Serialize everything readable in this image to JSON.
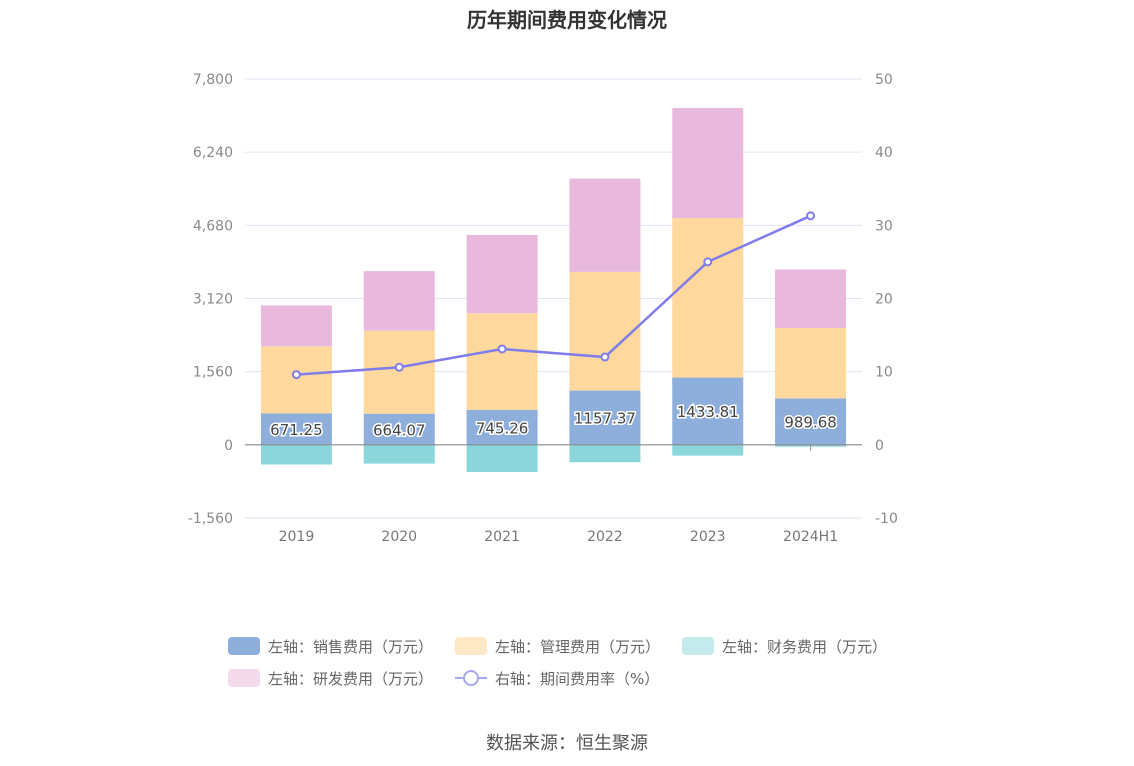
{
  "chart_data": {
    "type": "bar",
    "title": "历年期间费用变化情况",
    "categories": [
      "2019",
      "2020",
      "2021",
      "2022",
      "2023",
      "2024H1"
    ],
    "y_left": {
      "ticks": [
        "7,800",
        "6,240",
        "4,680",
        "3,120",
        "1,560",
        "0",
        "-1,560"
      ],
      "ylim": [
        -1560,
        7800
      ]
    },
    "y_right": {
      "ticks": [
        "50",
        "40",
        "30",
        "20",
        "10",
        "0",
        "-10"
      ],
      "ylim": [
        -10,
        50
      ]
    },
    "series": [
      {
        "name": "左轴：销售费用（万元）",
        "axis": "left",
        "type": "bar",
        "color": "#8eaedb",
        "values": [
          671.25,
          664.07,
          745.26,
          1157.37,
          1433.81,
          989.68
        ],
        "labels": [
          "671.25",
          "664.07",
          "745.26",
          "1157.37",
          "1433.81",
          "989.68"
        ]
      },
      {
        "name": "左轴：管理费用（万元）",
        "axis": "left",
        "type": "bar",
        "color": "#fed89c",
        "values": [
          1430,
          1770,
          2060,
          2530,
          3400,
          1500
        ]
      },
      {
        "name": "左轴：财务费用（万元）",
        "axis": "left",
        "type": "bar",
        "color": "#8ad6da",
        "values": [
          -420,
          -400,
          -580,
          -370,
          -230,
          -40
        ]
      },
      {
        "name": "左轴：研发费用（万元）",
        "axis": "left",
        "type": "bar",
        "color": "#e8b9dc",
        "values": [
          870,
          1270,
          1670,
          1990,
          2350,
          1250
        ]
      },
      {
        "name": "右轴：期间费用率（%）",
        "axis": "right",
        "type": "line",
        "color": "#7f7cec",
        "values": [
          9.6,
          10.6,
          13.1,
          12.0,
          25.0,
          31.3
        ]
      }
    ],
    "legend_position": "bottom",
    "grid": true
  },
  "source": "数据来源：恒生聚源"
}
